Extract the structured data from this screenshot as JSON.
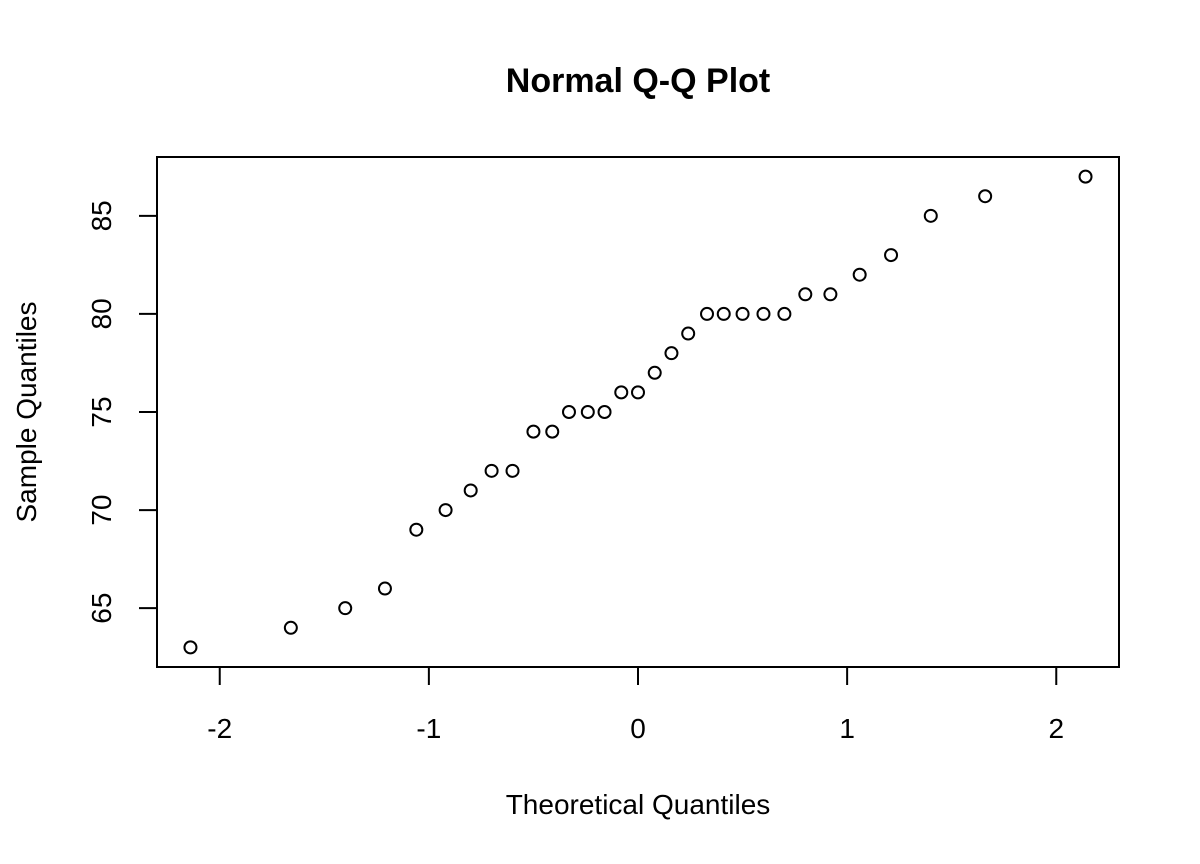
{
  "chart_data": {
    "type": "scatter",
    "title": "Normal Q-Q Plot",
    "xlabel": "Theoretical Quantiles",
    "ylabel": "Sample Quantiles",
    "xlim": [
      -2.3,
      2.3
    ],
    "ylim": [
      62,
      88
    ],
    "x_ticks": [
      -2,
      -1,
      0,
      1,
      2
    ],
    "x_tick_labels": [
      "-2",
      "-1",
      "0",
      "1",
      "2"
    ],
    "y_ticks": [
      65,
      70,
      75,
      80,
      85
    ],
    "y_tick_labels": [
      "65",
      "70",
      "75",
      "80",
      "85"
    ],
    "grid": false,
    "legend": "none",
    "marker": "open-circle",
    "points": [
      {
        "x": -2.14,
        "y": 63
      },
      {
        "x": -1.66,
        "y": 64
      },
      {
        "x": -1.4,
        "y": 65
      },
      {
        "x": -1.21,
        "y": 66
      },
      {
        "x": -1.06,
        "y": 69
      },
      {
        "x": -0.92,
        "y": 70
      },
      {
        "x": -0.8,
        "y": 71
      },
      {
        "x": -0.7,
        "y": 72
      },
      {
        "x": -0.6,
        "y": 72
      },
      {
        "x": -0.5,
        "y": 74
      },
      {
        "x": -0.41,
        "y": 74
      },
      {
        "x": -0.33,
        "y": 75
      },
      {
        "x": -0.24,
        "y": 75
      },
      {
        "x": -0.16,
        "y": 75
      },
      {
        "x": -0.08,
        "y": 76
      },
      {
        "x": 0.0,
        "y": 76
      },
      {
        "x": 0.08,
        "y": 77
      },
      {
        "x": 0.16,
        "y": 78
      },
      {
        "x": 0.24,
        "y": 79
      },
      {
        "x": 0.33,
        "y": 80
      },
      {
        "x": 0.41,
        "y": 80
      },
      {
        "x": 0.5,
        "y": 80
      },
      {
        "x": 0.6,
        "y": 80
      },
      {
        "x": 0.7,
        "y": 80
      },
      {
        "x": 0.8,
        "y": 81
      },
      {
        "x": 0.92,
        "y": 81
      },
      {
        "x": 1.06,
        "y": 82
      },
      {
        "x": 1.21,
        "y": 83
      },
      {
        "x": 1.4,
        "y": 85
      },
      {
        "x": 1.66,
        "y": 86
      },
      {
        "x": 2.14,
        "y": 87
      }
    ]
  }
}
